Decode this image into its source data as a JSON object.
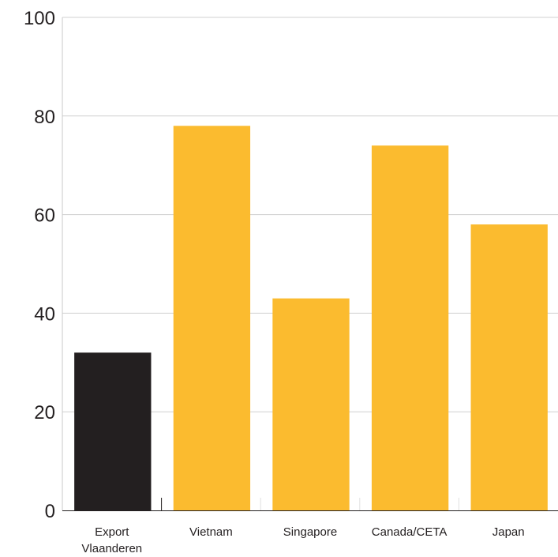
{
  "chart_data": {
    "type": "bar",
    "categories": [
      [
        "Export",
        "Vlaanderen"
      ],
      [
        "Vietnam"
      ],
      [
        "Singapore"
      ],
      [
        "Canada/CETA"
      ],
      [
        "Japan"
      ]
    ],
    "values": [
      32,
      78,
      43,
      74,
      58
    ],
    "bar_colors": [
      "#231f20",
      "#fbbb2f",
      "#fbbb2f",
      "#fbbb2f",
      "#fbbb2f"
    ],
    "ylim": [
      0,
      100
    ],
    "yticks": [
      0,
      20,
      40,
      60,
      80,
      100
    ],
    "grid": true,
    "colors": {
      "grid": "#d0d0d0",
      "axis": "#231f20",
      "text": "#231f20"
    }
  }
}
